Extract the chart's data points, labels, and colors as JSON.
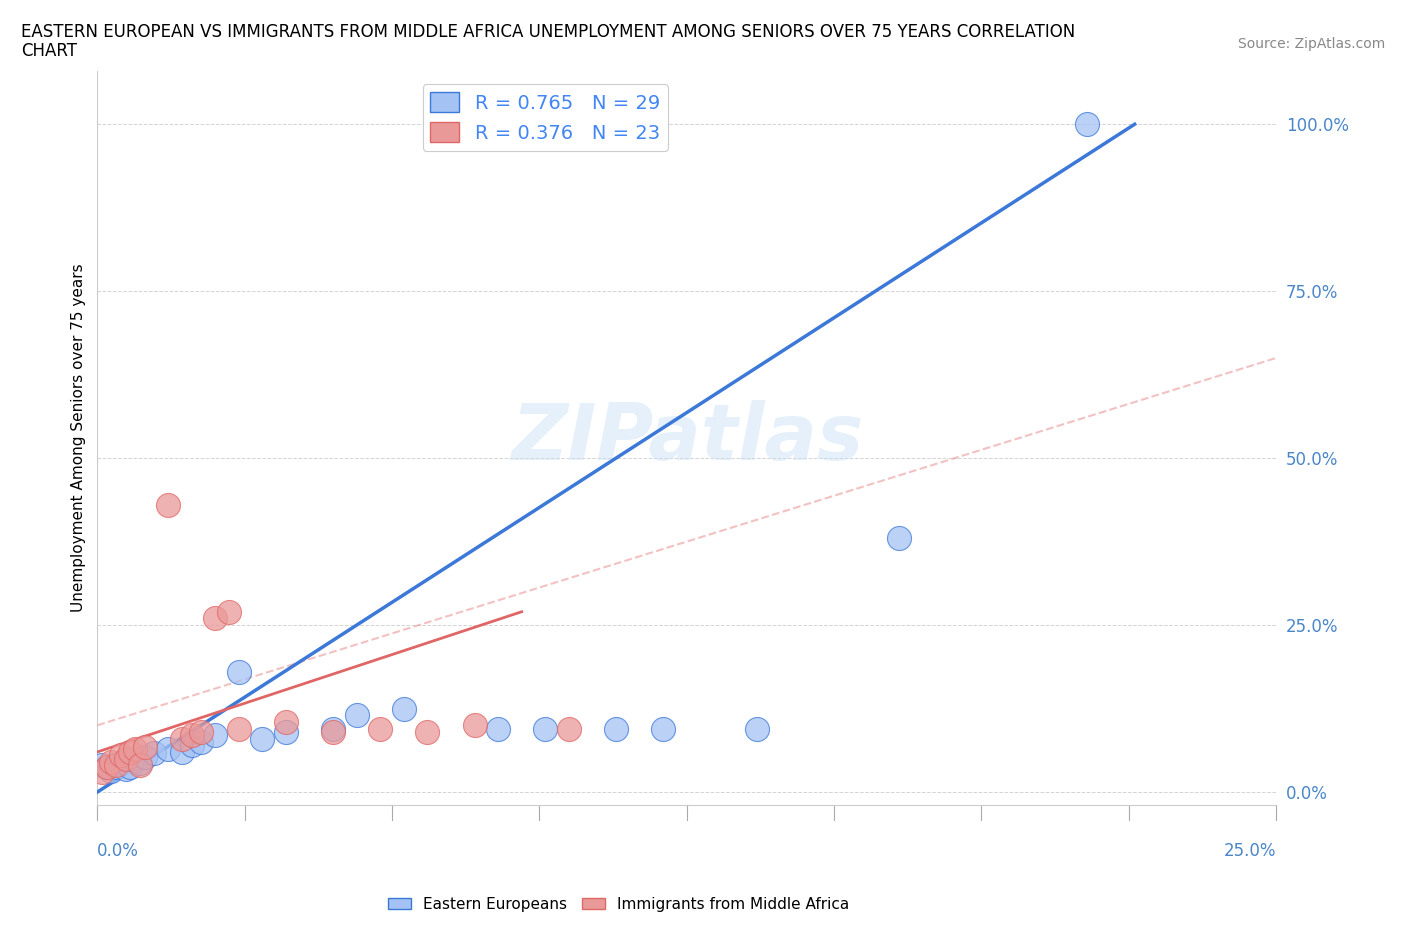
{
  "title_line1": "EASTERN EUROPEAN VS IMMIGRANTS FROM MIDDLE AFRICA UNEMPLOYMENT AMONG SENIORS OVER 75 YEARS CORRELATION",
  "title_line2": "CHART",
  "source": "Source: ZipAtlas.com",
  "xlabel_bottom_left": "0.0%",
  "xlabel_bottom_right": "25.0%",
  "ylabel": "Unemployment Among Seniors over 75 years",
  "ytick_labels": [
    "0.0%",
    "25.0%",
    "50.0%",
    "75.0%",
    "100.0%"
  ],
  "ytick_values": [
    0.0,
    0.25,
    0.5,
    0.75,
    1.0
  ],
  "xlim": [
    0.0,
    0.25
  ],
  "ylim": [
    -0.02,
    1.08
  ],
  "blue_scatter": [
    [
      0.001,
      0.04
    ],
    [
      0.002,
      0.038
    ],
    [
      0.003,
      0.032
    ],
    [
      0.004,
      0.038
    ],
    [
      0.005,
      0.043
    ],
    [
      0.006,
      0.035
    ],
    [
      0.007,
      0.038
    ],
    [
      0.008,
      0.048
    ],
    [
      0.009,
      0.043
    ],
    [
      0.01,
      0.053
    ],
    [
      0.012,
      0.058
    ],
    [
      0.015,
      0.065
    ],
    [
      0.018,
      0.06
    ],
    [
      0.02,
      0.07
    ],
    [
      0.022,
      0.075
    ],
    [
      0.025,
      0.085
    ],
    [
      0.03,
      0.18
    ],
    [
      0.035,
      0.08
    ],
    [
      0.04,
      0.09
    ],
    [
      0.05,
      0.095
    ],
    [
      0.055,
      0.115
    ],
    [
      0.065,
      0.125
    ],
    [
      0.085,
      0.095
    ],
    [
      0.095,
      0.095
    ],
    [
      0.11,
      0.095
    ],
    [
      0.12,
      0.095
    ],
    [
      0.14,
      0.095
    ],
    [
      0.17,
      0.38
    ],
    [
      0.21,
      1.0
    ]
  ],
  "pink_scatter": [
    [
      0.001,
      0.03
    ],
    [
      0.002,
      0.038
    ],
    [
      0.003,
      0.045
    ],
    [
      0.004,
      0.04
    ],
    [
      0.005,
      0.055
    ],
    [
      0.006,
      0.05
    ],
    [
      0.007,
      0.06
    ],
    [
      0.008,
      0.065
    ],
    [
      0.009,
      0.04
    ],
    [
      0.01,
      0.068
    ],
    [
      0.015,
      0.43
    ],
    [
      0.018,
      0.08
    ],
    [
      0.02,
      0.085
    ],
    [
      0.022,
      0.09
    ],
    [
      0.025,
      0.26
    ],
    [
      0.028,
      0.27
    ],
    [
      0.03,
      0.095
    ],
    [
      0.04,
      0.105
    ],
    [
      0.05,
      0.09
    ],
    [
      0.06,
      0.095
    ],
    [
      0.07,
      0.09
    ],
    [
      0.08,
      0.1
    ],
    [
      0.1,
      0.095
    ]
  ],
  "blue_line_x": [
    0.0,
    0.22
  ],
  "blue_line_y": [
    0.0,
    1.0
  ],
  "pink_solid_line_x": [
    0.0,
    0.09
  ],
  "pink_solid_line_y": [
    0.06,
    0.27
  ],
  "pink_dashed_line_x": [
    0.0,
    0.25
  ],
  "pink_dashed_line_y": [
    0.1,
    0.65
  ],
  "blue_color": "#a4c2f4",
  "pink_color": "#ea9999",
  "blue_line_color": "#3c78d8",
  "pink_solid_color": "#e06666",
  "pink_dashed_color": "#ea9999",
  "R_blue": 0.765,
  "N_blue": 29,
  "R_pink": 0.376,
  "N_pink": 23,
  "watermark": "ZIPatlas",
  "background_color": "#ffffff",
  "grid_color": "#aaaaaa",
  "title_fontsize": 12,
  "axis_label_fontsize": 11,
  "tick_fontsize": 12,
  "legend_fontsize": 14,
  "source_fontsize": 10
}
